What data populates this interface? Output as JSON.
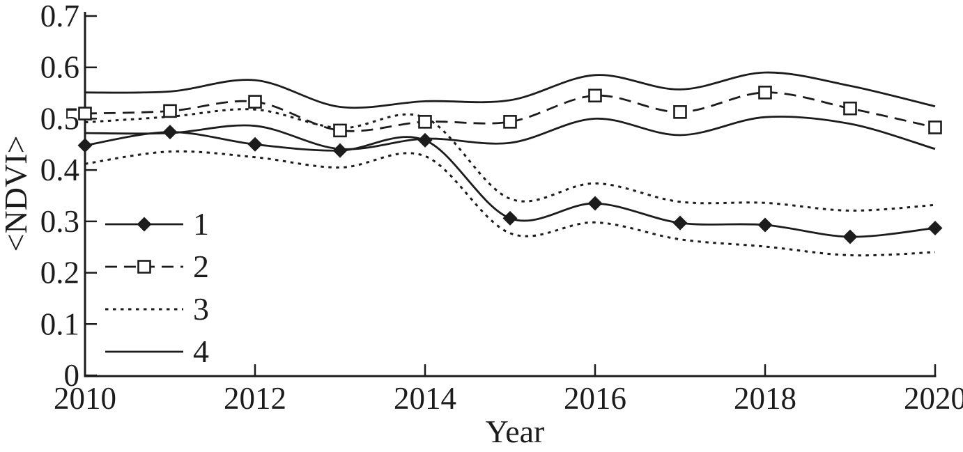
{
  "figure": {
    "background": "#ffffff",
    "ink_color": "#1c1c1c"
  },
  "chart_data": {
    "type": "line",
    "title": "",
    "xlabel": "Year",
    "ylabel": "<NDVI>",
    "xlim": [
      2010,
      2020
    ],
    "ylim": [
      0,
      0.7
    ],
    "grid": false,
    "legend_position": "inside-left",
    "x": [
      2010,
      2011,
      2012,
      2013,
      2014,
      2015,
      2016,
      2017,
      2018,
      2019,
      2020
    ],
    "xticks": [
      {
        "value": 2010,
        "label": "2010"
      },
      {
        "value": 2012,
        "label": "2012"
      },
      {
        "value": 2014,
        "label": "2014"
      },
      {
        "value": 2016,
        "label": "2016"
      },
      {
        "value": 2018,
        "label": "2018"
      },
      {
        "value": 2020,
        "label": "2020"
      }
    ],
    "yticks": [
      {
        "value": 0,
        "label": "0"
      },
      {
        "value": 0.1,
        "label": "0.1"
      },
      {
        "value": 0.2,
        "label": "0.2"
      },
      {
        "value": 0.3,
        "label": "0.3"
      },
      {
        "value": 0.4,
        "label": "0.4"
      },
      {
        "value": 0.5,
        "label": "0.5"
      },
      {
        "value": 0.6,
        "label": "0.6"
      },
      {
        "value": 0.7,
        "label": "0.7"
      }
    ],
    "series": [
      {
        "name": "4",
        "kind": "band",
        "line_style": "solid",
        "marker": "none",
        "upper": [
          0.551,
          0.553,
          0.575,
          0.523,
          0.534,
          0.536,
          0.585,
          0.557,
          0.59,
          0.564,
          0.524
        ],
        "lower": [
          0.472,
          0.472,
          0.486,
          0.441,
          0.461,
          0.453,
          0.5,
          0.468,
          0.503,
          0.49,
          0.441
        ]
      },
      {
        "name": "3",
        "kind": "band",
        "line_style": "dotted",
        "marker": "none",
        "upper": [
          0.493,
          0.504,
          0.518,
          0.482,
          0.502,
          0.344,
          0.374,
          0.338,
          0.336,
          0.321,
          0.332
        ],
        "lower": [
          0.412,
          0.436,
          0.425,
          0.405,
          0.427,
          0.277,
          0.298,
          0.265,
          0.251,
          0.234,
          0.24
        ]
      },
      {
        "name": "2",
        "kind": "line",
        "line_style": "dashed",
        "marker": "open-square",
        "values": [
          0.51,
          0.515,
          0.533,
          0.477,
          0.494,
          0.494,
          0.545,
          0.513,
          0.551,
          0.52,
          0.483
        ]
      },
      {
        "name": "1",
        "kind": "line",
        "line_style": "solid",
        "marker": "filled-diamond",
        "values": [
          0.448,
          0.474,
          0.45,
          0.438,
          0.458,
          0.306,
          0.335,
          0.297,
          0.293,
          0.27,
          0.287
        ]
      }
    ],
    "legend": [
      {
        "label": "1",
        "line_style": "solid",
        "marker": "filled-diamond"
      },
      {
        "label": "2",
        "line_style": "dashed",
        "marker": "open-square"
      },
      {
        "label": "3",
        "line_style": "dotted",
        "marker": "none"
      },
      {
        "label": "4",
        "line_style": "solid",
        "marker": "none"
      }
    ]
  }
}
